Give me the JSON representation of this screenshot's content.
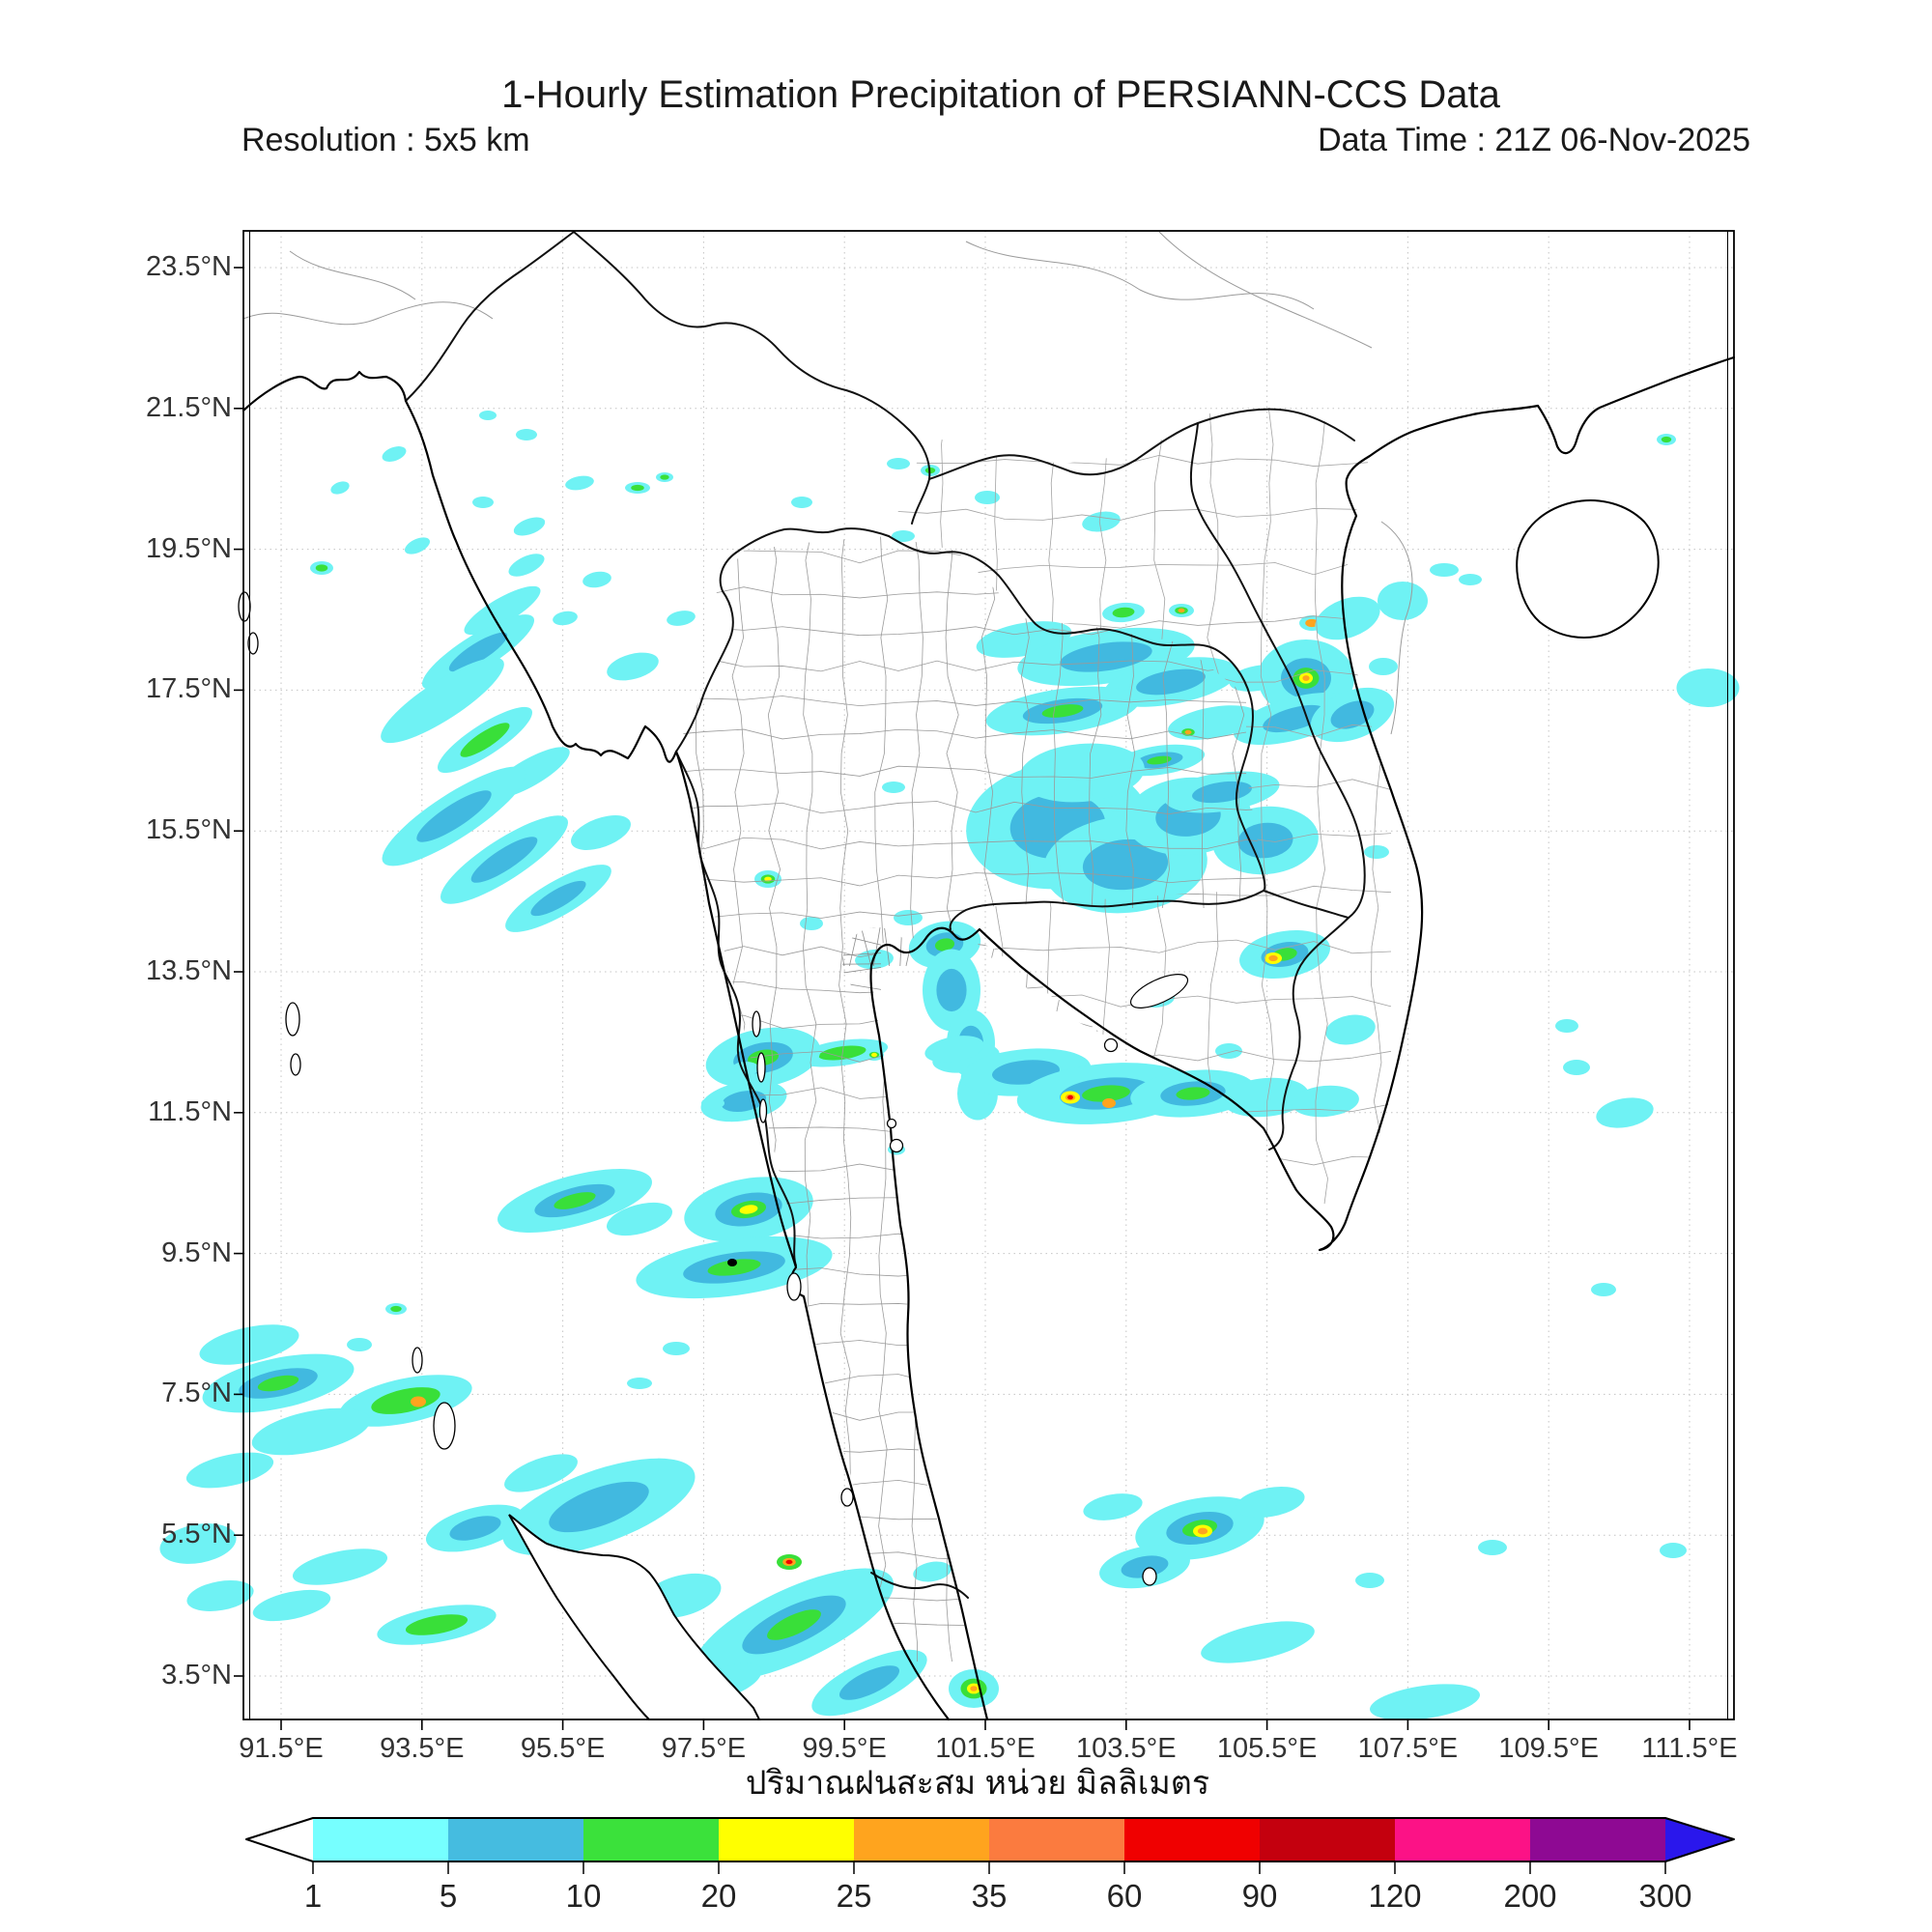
{
  "header": {
    "title": "1-Hourly Estimation Precipitation of PERSIANN-CCS Data",
    "resolution": "Resolution : 5x5 km",
    "data_time": "Data Time : 21Z 06-Nov-2025"
  },
  "caption": "ปริมาณฝนสะสม หน่วย มิลลิเมตร",
  "map": {
    "lat_ticks": [
      "23.5°N",
      "21.5°N",
      "19.5°N",
      "17.5°N",
      "15.5°N",
      "13.5°N",
      "11.5°N",
      "9.5°N",
      "7.5°N",
      "5.5°N",
      "3.5°N"
    ],
    "lon_ticks": [
      "91.5°E",
      "93.5°E",
      "95.5°E",
      "97.5°E",
      "99.5°E",
      "101.5°E",
      "103.5°E",
      "105.5°E",
      "107.5°E",
      "109.5°E",
      "111.5°E"
    ],
    "precip_levels": {
      "c": "#6FF2F4",
      "b": "#41B9E0",
      "g": "#39DF39",
      "y": "#FFFF00",
      "o": "#FFA41E",
      "r": "#F00000"
    },
    "precip_blobs": [
      [
        408,
        470,
        26,
        14,
        -20,
        "c"
      ],
      [
        352,
        505,
        20,
        12,
        -20,
        "c"
      ],
      [
        432,
        565,
        28,
        14,
        -25,
        "c"
      ],
      [
        548,
        545,
        34,
        16,
        -20,
        "c"
      ],
      [
        500,
        520,
        22,
        12,
        0,
        "c"
      ],
      [
        545,
        585,
        40,
        18,
        -25,
        "c"
      ],
      [
        505,
        430,
        18,
        10,
        0,
        "c"
      ],
      [
        545,
        450,
        22,
        12,
        0,
        "c"
      ],
      [
        333,
        588,
        24,
        14,
        0,
        "cg"
      ],
      [
        600,
        500,
        30,
        14,
        -10,
        "c"
      ],
      [
        660,
        505,
        26,
        12,
        0,
        "cg"
      ],
      [
        688,
        494,
        18,
        10,
        0,
        "cg"
      ],
      [
        520,
        632,
        90,
        26,
        -30,
        "c"
      ],
      [
        495,
        675,
        135,
        36,
        -32,
        "cb"
      ],
      [
        458,
        725,
        150,
        40,
        -33,
        "c"
      ],
      [
        502,
        766,
        115,
        32,
        -33,
        "cg"
      ],
      [
        548,
        800,
        95,
        28,
        -30,
        "c"
      ],
      [
        470,
        845,
        175,
        46,
        -33,
        "cb"
      ],
      [
        522,
        890,
        155,
        42,
        -33,
        "cb"
      ],
      [
        578,
        930,
        125,
        36,
        -30,
        "cb"
      ],
      [
        622,
        862,
        65,
        30,
        -20,
        "c"
      ],
      [
        830,
        520,
        22,
        12,
        0,
        "c"
      ],
      [
        930,
        480,
        24,
        12,
        0,
        "c"
      ],
      [
        963,
        487,
        20,
        12,
        0,
        "cg"
      ],
      [
        655,
        690,
        55,
        26,
        -15,
        "c"
      ],
      [
        705,
        640,
        30,
        15,
        -10,
        "c"
      ],
      [
        618,
        600,
        30,
        16,
        -10,
        "c"
      ],
      [
        585,
        640,
        26,
        14,
        -10,
        "c"
      ],
      [
        925,
        815,
        24,
        12,
        0,
        "c"
      ],
      [
        1060,
        662,
        100,
        34,
        -10,
        "c"
      ],
      [
        1145,
        680,
        185,
        55,
        -8,
        "cb"
      ],
      [
        1212,
        706,
        140,
        46,
        -10,
        "cb"
      ],
      [
        1100,
        736,
        160,
        46,
        -8,
        "cbg"
      ],
      [
        1256,
        748,
        95,
        32,
        -10,
        "c"
      ],
      [
        1302,
        702,
        60,
        26,
        -10,
        "c"
      ],
      [
        1223,
        632,
        26,
        14,
        0,
        "cgo"
      ],
      [
        1163,
        634,
        44,
        20,
        -5,
        "cg"
      ],
      [
        1022,
        515,
        26,
        14,
        0,
        "c"
      ],
      [
        935,
        555,
        24,
        12,
        0,
        "c"
      ],
      [
        1095,
        855,
        190,
        130,
        -5,
        "cb"
      ],
      [
        1165,
        895,
        170,
        100,
        -5,
        "cb"
      ],
      [
        1230,
        845,
        130,
        80,
        -5,
        "cb"
      ],
      [
        1310,
        870,
        110,
        70,
        -5,
        "cb"
      ],
      [
        1200,
        787,
        95,
        30,
        -8,
        "cbg"
      ],
      [
        1230,
        758,
        26,
        15,
        0,
        "cgo"
      ],
      [
        1265,
        820,
        120,
        40,
        -8,
        "cb"
      ],
      [
        1120,
        800,
        130,
        60,
        -5,
        "c"
      ],
      [
        1352,
        702,
        100,
        80,
        0,
        "cbgyo"
      ],
      [
        1340,
        744,
        130,
        44,
        -15,
        "cb"
      ],
      [
        1400,
        740,
        90,
        50,
        -20,
        "cb"
      ],
      [
        1358,
        645,
        26,
        16,
        0,
        "co"
      ],
      [
        1395,
        640,
        70,
        40,
        -20,
        "c"
      ],
      [
        1495,
        590,
        30,
        14,
        0,
        "c"
      ],
      [
        1522,
        600,
        24,
        12,
        0,
        "c"
      ],
      [
        1140,
        540,
        40,
        20,
        -10,
        "c"
      ],
      [
        1725,
        455,
        20,
        12,
        0,
        "cg"
      ],
      [
        1768,
        712,
        65,
        40,
        0,
        "c"
      ],
      [
        1452,
        622,
        52,
        40,
        0,
        "c"
      ],
      [
        1432,
        690,
        30,
        18,
        0,
        "c"
      ],
      [
        978,
        978,
        75,
        48,
        -10,
        "cbg"
      ],
      [
        985,
        1025,
        60,
        85,
        0,
        "cb"
      ],
      [
        1005,
        1080,
        50,
        70,
        0,
        "cb"
      ],
      [
        1012,
        1132,
        42,
        55,
        0,
        "c"
      ],
      [
        940,
        950,
        30,
        16,
        0,
        "c"
      ],
      [
        795,
        910,
        28,
        18,
        0,
        "cgy"
      ],
      [
        840,
        956,
        24,
        14,
        0,
        "c"
      ],
      [
        905,
        993,
        40,
        20,
        -5,
        "c"
      ],
      [
        1000,
        1095,
        70,
        30,
        -8,
        "c"
      ],
      [
        1062,
        1110,
        135,
        48,
        -5,
        "cb"
      ],
      [
        1145,
        1132,
        185,
        62,
        -5,
        "cbg"
      ],
      [
        1108,
        1136,
        20,
        13,
        0,
        "yor"
      ],
      [
        1148,
        1142,
        14,
        10,
        0,
        "o"
      ],
      [
        1235,
        1132,
        130,
        48,
        -5,
        "cbg"
      ],
      [
        1310,
        1136,
        90,
        40,
        -5,
        "c"
      ],
      [
        1372,
        1140,
        70,
        32,
        -5,
        "c"
      ],
      [
        988,
        1086,
        62,
        26,
        -10,
        "c"
      ],
      [
        872,
        1090,
        95,
        26,
        -8,
        "cg"
      ],
      [
        905,
        1092,
        20,
        12,
        0,
        "cgy"
      ],
      [
        928,
        1190,
        18,
        11,
        0,
        "cg"
      ],
      [
        790,
        1095,
        120,
        60,
        -10,
        "cbg"
      ],
      [
        770,
        1140,
        90,
        40,
        -10,
        "cb"
      ],
      [
        738,
        1142,
        24,
        12,
        0,
        "c"
      ],
      [
        772,
        1106,
        28,
        14,
        0,
        "c"
      ],
      [
        595,
        1243,
        165,
        52,
        -15,
        "cbg"
      ],
      [
        662,
        1262,
        70,
        30,
        -15,
        "c"
      ],
      [
        775,
        1252,
        135,
        64,
        -10,
        "cbgy"
      ],
      [
        760,
        1312,
        205,
        58,
        -8,
        "cbg"
      ],
      [
        700,
        1396,
        28,
        14,
        0,
        "c"
      ],
      [
        662,
        1432,
        26,
        12,
        0,
        "c"
      ],
      [
        817,
        1617,
        26,
        16,
        0,
        "gor"
      ],
      [
        965,
        1627,
        40,
        20,
        -10,
        "c"
      ],
      [
        1330,
        988,
        95,
        48,
        -10,
        "cbg"
      ],
      [
        1318,
        992,
        18,
        12,
        0,
        "yo"
      ],
      [
        1398,
        1066,
        52,
        30,
        -10,
        "c"
      ],
      [
        1425,
        882,
        26,
        14,
        0,
        "c"
      ],
      [
        1195,
        1032,
        42,
        22,
        0,
        "cgo"
      ],
      [
        1272,
        1088,
        28,
        16,
        0,
        "c"
      ],
      [
        420,
        1450,
        140,
        46,
        -12,
        "cg"
      ],
      [
        433,
        1451,
        16,
        11,
        0,
        "o"
      ],
      [
        288,
        1432,
        160,
        52,
        -12,
        "cbg"
      ],
      [
        258,
        1392,
        105,
        36,
        -12,
        "c"
      ],
      [
        322,
        1482,
        125,
        42,
        -12,
        "c"
      ],
      [
        238,
        1522,
        92,
        32,
        -12,
        "c"
      ],
      [
        205,
        1598,
        80,
        40,
        -10,
        "c"
      ],
      [
        228,
        1652,
        70,
        30,
        -10,
        "c"
      ],
      [
        372,
        1392,
        26,
        14,
        0,
        "c"
      ],
      [
        410,
        1355,
        22,
        12,
        0,
        "cg"
      ],
      [
        492,
        1582,
        105,
        42,
        -15,
        "cb"
      ],
      [
        620,
        1560,
        210,
        75,
        -20,
        "cb"
      ],
      [
        560,
        1525,
        80,
        30,
        -20,
        "c"
      ],
      [
        452,
        1682,
        125,
        36,
        -10,
        "cg"
      ],
      [
        352,
        1622,
        100,
        32,
        -12,
        "c"
      ],
      [
        302,
        1662,
        82,
        28,
        -12,
        "c"
      ],
      [
        705,
        1652,
        85,
        42,
        -15,
        "c"
      ],
      [
        822,
        1682,
        225,
        75,
        -25,
        "cbg"
      ],
      [
        900,
        1742,
        130,
        45,
        -25,
        "cb"
      ],
      [
        755,
        1740,
        70,
        30,
        -20,
        "c"
      ],
      [
        1008,
        1748,
        52,
        40,
        0,
        "cgyo"
      ],
      [
        1242,
        1582,
        135,
        62,
        -10,
        "cbg"
      ],
      [
        1245,
        1585,
        20,
        13,
        0,
        "yo"
      ],
      [
        1185,
        1622,
        95,
        42,
        -10,
        "cb"
      ],
      [
        1315,
        1555,
        72,
        30,
        -10,
        "c"
      ],
      [
        1152,
        1560,
        62,
        26,
        -10,
        "c"
      ],
      [
        1302,
        1700,
        120,
        36,
        -12,
        "c"
      ],
      [
        1418,
        1636,
        30,
        16,
        0,
        "c"
      ],
      [
        1475,
        1762,
        115,
        34,
        -8,
        "c"
      ],
      [
        1545,
        1602,
        30,
        16,
        0,
        "c"
      ],
      [
        1632,
        1105,
        28,
        16,
        0,
        "c"
      ],
      [
        1682,
        1152,
        60,
        30,
        -10,
        "c"
      ],
      [
        1622,
        1062,
        24,
        14,
        0,
        "c"
      ],
      [
        1660,
        1335,
        26,
        14,
        0,
        "c"
      ],
      [
        1732,
        1605,
        28,
        16,
        0,
        "c"
      ]
    ]
  },
  "colorbar": {
    "tick_labels": [
      "1",
      "5",
      "10",
      "20",
      "25",
      "35",
      "60",
      "90",
      "120",
      "200",
      "300"
    ],
    "segment_colors": [
      "#76FFFF",
      "#45BCE0",
      "#3BE13B",
      "#FFFF00",
      "#FFA41E",
      "#FB7B3F",
      "#F00000",
      "#C4000E",
      "#FC1286",
      "#8E0993"
    ],
    "underflow_color": "#FFFFFF",
    "overflow_color": "#2A17EC"
  }
}
